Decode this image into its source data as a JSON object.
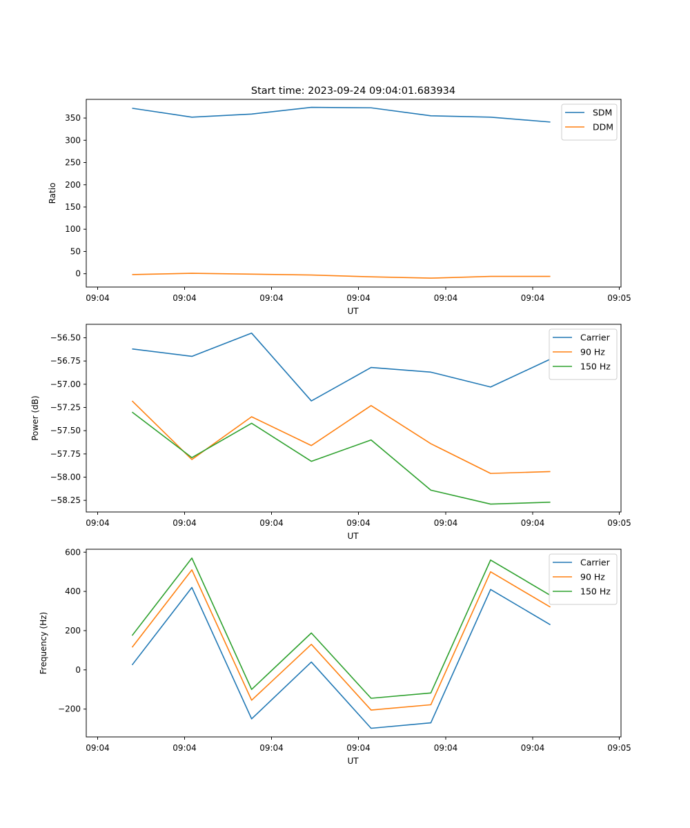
{
  "figure": {
    "title": "Start time: 2023-09-24 09:04:01.683934"
  },
  "chart_data": [
    {
      "type": "line",
      "title": "Start time: 2023-09-24 09:04:01.683934",
      "xlabel": "UT",
      "ylabel": "Ratio",
      "x_tick_labels": [
        "09:04",
        "09:04",
        "09:04",
        "09:04",
        "09:04",
        "09:04",
        "09:05"
      ],
      "y_ticks": [
        0,
        50,
        100,
        150,
        200,
        250,
        300,
        350
      ],
      "y_tick_labels": [
        "0",
        "50",
        "100",
        "150",
        "200",
        "250",
        "300",
        "350"
      ],
      "ylim": [
        -30,
        392
      ],
      "x": [
        1,
        2,
        3,
        4,
        5,
        6,
        7,
        8
      ],
      "xlim": [
        0.232,
        9.183
      ],
      "legend": "top-right",
      "series": [
        {
          "name": "SDM",
          "color": "#1f77b4",
          "values": [
            372,
            352,
            359,
            374,
            373,
            355,
            352,
            341
          ]
        },
        {
          "name": "DDM",
          "color": "#ff7f0e",
          "values": [
            -2,
            1,
            -1,
            -3,
            -7,
            -10,
            -6,
            -6
          ]
        }
      ]
    },
    {
      "type": "line",
      "title": "",
      "xlabel": "UT",
      "ylabel": "Power (dB)",
      "x_tick_labels": [
        "09:04",
        "09:04",
        "09:04",
        "09:04",
        "09:04",
        "09:04",
        "09:05"
      ],
      "y_ticks": [
        -56.5,
        -56.75,
        -57.0,
        -57.25,
        -57.5,
        -57.75,
        -58.0,
        -58.25
      ],
      "y_tick_labels": [
        "−56.50",
        "−56.75",
        "−57.00",
        "−57.25",
        "−57.50",
        "−57.75",
        "−58.00",
        "−58.25"
      ],
      "ylim": [
        -58.375,
        -56.355
      ],
      "x": [
        1,
        2,
        3,
        4,
        5,
        6,
        7,
        8
      ],
      "xlim": [
        0.232,
        9.183
      ],
      "legend": "top-right",
      "series": [
        {
          "name": "Carrier",
          "color": "#1f77b4",
          "values": [
            -56.62,
            -56.7,
            -56.45,
            -57.18,
            -56.82,
            -56.87,
            -57.03,
            -56.73
          ]
        },
        {
          "name": "90 Hz",
          "color": "#ff7f0e",
          "values": [
            -57.18,
            -57.81,
            -57.35,
            -57.66,
            -57.23,
            -57.64,
            -57.96,
            -57.94
          ]
        },
        {
          "name": "150 Hz",
          "color": "#2ca02c",
          "values": [
            -57.3,
            -57.79,
            -57.42,
            -57.83,
            -57.6,
            -58.14,
            -58.29,
            -58.27
          ]
        }
      ]
    },
    {
      "type": "line",
      "title": "",
      "xlabel": "UT",
      "ylabel": "Frequency (Hz)",
      "x_tick_labels": [
        "09:04",
        "09:04",
        "09:04",
        "09:04",
        "09:04",
        "09:04",
        "09:05"
      ],
      "y_ticks": [
        -200,
        0,
        200,
        400,
        600
      ],
      "y_tick_labels": [
        "−200",
        "0",
        "200",
        "400",
        "600"
      ],
      "ylim": [
        -342,
        615
      ],
      "x": [
        1,
        2,
        3,
        4,
        5,
        6,
        7,
        8
      ],
      "xlim": [
        0.232,
        9.183
      ],
      "legend": "top-right",
      "series": [
        {
          "name": "Carrier",
          "color": "#1f77b4",
          "values": [
            25,
            420,
            -250,
            40,
            -298,
            -270,
            410,
            230
          ]
        },
        {
          "name": "90 Hz",
          "color": "#ff7f0e",
          "values": [
            115,
            510,
            -155,
            130,
            -205,
            -178,
            500,
            320
          ]
        },
        {
          "name": "150 Hz",
          "color": "#2ca02c",
          "values": [
            175,
            570,
            -100,
            188,
            -145,
            -118,
            560,
            380
          ]
        }
      ]
    }
  ]
}
